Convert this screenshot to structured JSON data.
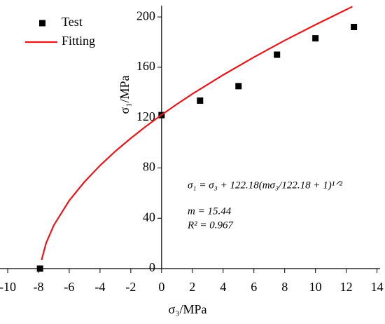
{
  "chart_data": {
    "type": "scatter",
    "x_label": "σ₃/MPa",
    "y_label": "σ₁/MPa",
    "xlim": [
      -10.5,
      14.2
    ],
    "ylim": [
      0,
      209
    ],
    "xticks": [
      -10,
      -8,
      -6,
      -4,
      -2,
      0,
      2,
      4,
      6,
      8,
      10,
      12,
      14
    ],
    "yticks": [
      0,
      40,
      80,
      120,
      160,
      200
    ],
    "legend": "top-left",
    "annotations": [
      "σ₁ = σ₃ + 122.18(mσ₃/122.18 + 1)¹ᐟ²",
      "m = 15.44",
      "R² = 0.967"
    ],
    "series": [
      {
        "name": "Test",
        "kind": "points",
        "color": "#000000",
        "x": [
          -7.9,
          0,
          2.5,
          5,
          7.5,
          10,
          12.5
        ],
        "values": [
          0,
          122,
          133.5,
          145,
          170,
          183,
          192
        ]
      },
      {
        "name": "Fitting",
        "kind": "line",
        "color": "#e8161b",
        "x": [
          -7.8,
          -7.5,
          -7,
          -6,
          -5,
          -4,
          -3,
          -2,
          -1,
          0,
          1,
          2,
          4,
          6,
          8,
          10,
          12,
          12.4
        ],
        "values": [
          6.8,
          20.4,
          34.5,
          54.1,
          69.1,
          81.9,
          93.3,
          103.6,
          113.2,
          122.18,
          130.7,
          138.8,
          153.9,
          168.0,
          181.3,
          193.8,
          205.8,
          208.2
        ]
      }
    ]
  }
}
